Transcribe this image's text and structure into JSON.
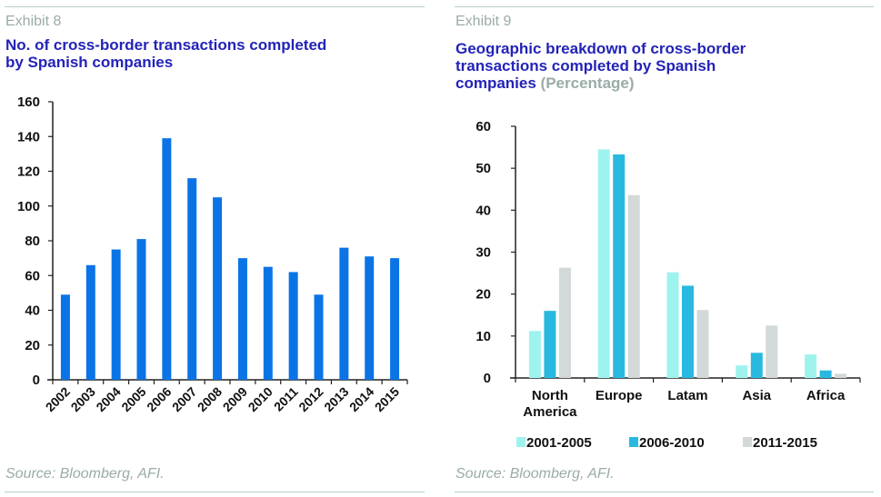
{
  "panels": [
    {
      "exhibit": "Exhibit 8",
      "title": "No. of cross-border transactions completed by Spanish companies",
      "title_lines": [
        "No. of cross-border transactions completed",
        "by Spanish companies"
      ],
      "subtitle": "",
      "source": "Source: Bloomberg, AFI."
    },
    {
      "exhibit": "Exhibit 9",
      "title": "Geographic breakdown of cross-border transactions completed by Spanish companies",
      "title_lines": [
        "Geographic breakdown of cross-border",
        "transactions completed by Spanish",
        "companies"
      ],
      "subtitle": "(Percentage)",
      "source": "Source: Bloomberg, AFI."
    }
  ],
  "colors": {
    "title": "#2323b8",
    "muted": "#9aaca8",
    "bar_blue": "#0a74e6",
    "series_2001_2005": "#9ef3ee",
    "series_2006_2010": "#29b9e0",
    "series_2011_2015": "#d3d9d8"
  },
  "chart_data": [
    {
      "type": "bar",
      "title": "No. of cross-border transactions completed by Spanish companies",
      "xlabel": "",
      "ylabel": "",
      "categories": [
        "2002",
        "2003",
        "2004",
        "2005",
        "2006",
        "2007",
        "2008",
        "2009",
        "2010",
        "2011",
        "2012",
        "2013",
        "2014",
        "2015"
      ],
      "values": [
        49,
        66,
        75,
        81,
        139,
        116,
        105,
        70,
        65,
        62,
        49,
        76,
        71,
        70
      ],
      "ylim": [
        0,
        160
      ],
      "yticks": [
        0,
        20,
        40,
        60,
        80,
        100,
        120,
        140,
        160
      ],
      "xtick_rotation": "diagonal",
      "grid": false,
      "legend": "none"
    },
    {
      "type": "bar",
      "title": "Geographic breakdown of cross-border transactions completed by Spanish companies (Percentage)",
      "xlabel": "",
      "ylabel": "",
      "categories": [
        "North America",
        "Europe",
        "Latam",
        "Asia",
        "Africa"
      ],
      "category_lines": [
        [
          "North",
          "America"
        ],
        [
          "Europe"
        ],
        [
          "Latam"
        ],
        [
          "Asia"
        ],
        [
          "Africa"
        ]
      ],
      "series": [
        {
          "name": "2001-2005",
          "values": [
            11.2,
            54.5,
            25.2,
            3.0,
            5.6
          ]
        },
        {
          "name": "2006-2010",
          "values": [
            16.0,
            53.3,
            22.0,
            6.0,
            1.8
          ]
        },
        {
          "name": "2011-2015",
          "values": [
            26.3,
            43.6,
            16.2,
            12.5,
            1.0
          ]
        }
      ],
      "ylim": [
        0,
        60
      ],
      "yticks": [
        0,
        10,
        20,
        30,
        40,
        50,
        60
      ],
      "grid": false,
      "legend": "bottom"
    }
  ]
}
